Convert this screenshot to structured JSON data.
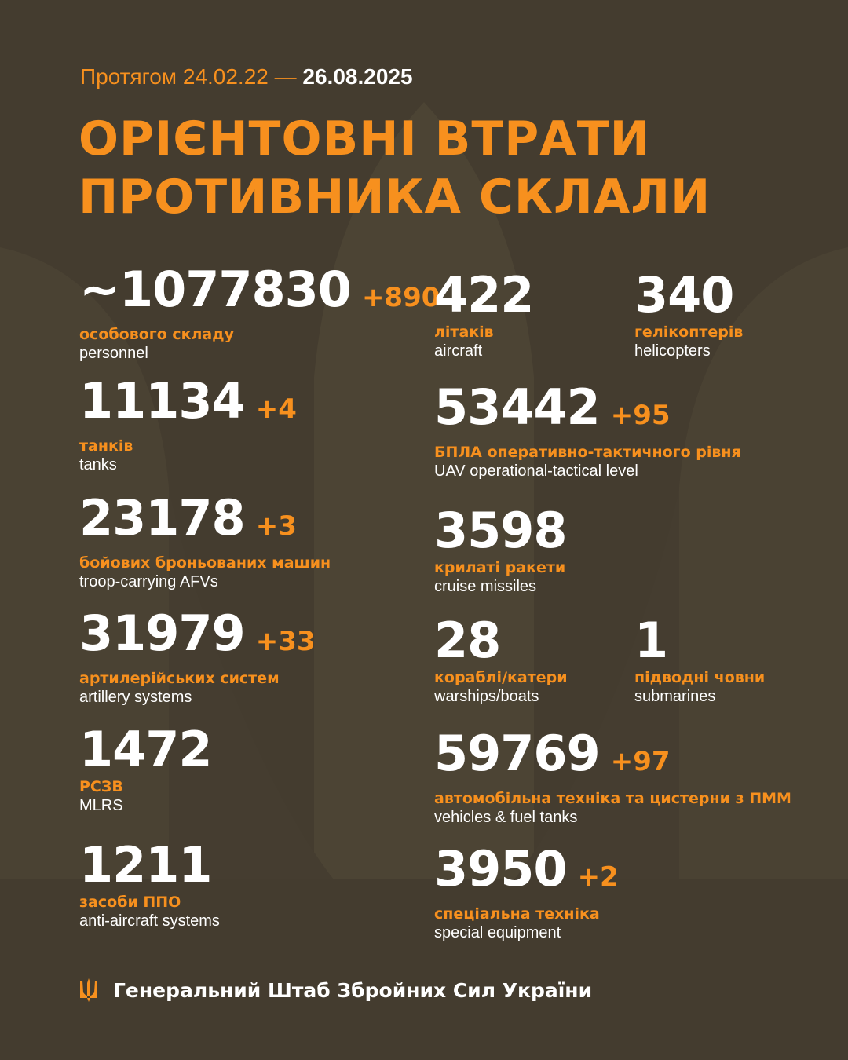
{
  "header": {
    "period_prefix": "Протягом 24.02.22 —",
    "period_end": "26.08.2025",
    "title_line1": "ОРІЄНТОВНІ ВТРАТИ",
    "title_line2": "ПРОТИВНИКА СКЛАЛИ"
  },
  "colors": {
    "background": "#443c2f",
    "accent": "#f7901e",
    "text": "#ffffff"
  },
  "left": [
    {
      "value": "~1077830",
      "delta": "+890",
      "ua": "особового складу",
      "en": "personnel"
    },
    {
      "value": "11134",
      "delta": "+4",
      "ua": "танків",
      "en": "tanks"
    },
    {
      "value": "23178",
      "delta": "+3",
      "ua": "бойових броньованих машин",
      "en": "troop-carrying AFVs"
    },
    {
      "value": "31979",
      "delta": "+33",
      "ua": "артилерійських систем",
      "en": "artillery systems"
    },
    {
      "value": "1472",
      "delta": "",
      "ua": "РСЗВ",
      "en": "MLRS"
    },
    {
      "value": "1211",
      "delta": "",
      "ua": "засоби ППО",
      "en": "anti-aircraft systems"
    }
  ],
  "right": [
    {
      "value": "422",
      "delta": "",
      "ua": "літаків",
      "en": "aircraft"
    },
    {
      "value": "340",
      "delta": "",
      "ua": "гелікоптерів",
      "en": "helicopters"
    },
    {
      "value": "53442",
      "delta": "+95",
      "ua": "БПЛА оперативно-тактичного рівня",
      "en": "UAV operational-tactical level"
    },
    {
      "value": "3598",
      "delta": "",
      "ua": "крилаті ракети",
      "en": "cruise missiles"
    },
    {
      "value": "28",
      "delta": "",
      "ua": "кораблі/катери",
      "en": "warships/boats"
    },
    {
      "value": "1",
      "delta": "",
      "ua": "підводні човни",
      "en": "submarines"
    },
    {
      "value": "59769",
      "delta": "+97",
      "ua": "автомобільна техніка та цистерни з ПММ",
      "en": "vehicles & fuel tanks"
    },
    {
      "value": "3950",
      "delta": "+2",
      "ua": "спеціальна техніка",
      "en": "special equipment"
    }
  ],
  "footer": {
    "emblem_icon": "trident-icon",
    "org": "Генеральний Штаб Збройних Сил України"
  }
}
